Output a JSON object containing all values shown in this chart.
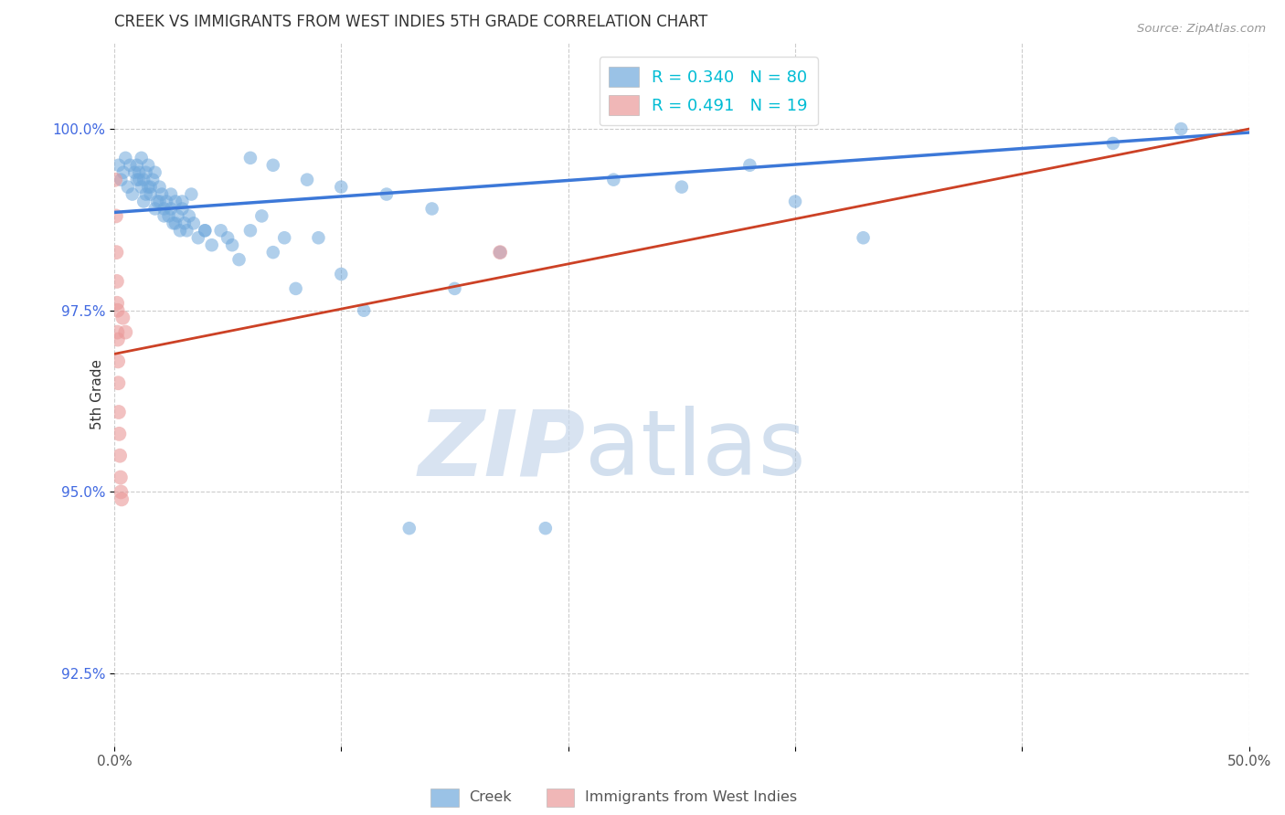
{
  "title": "CREEK VS IMMIGRANTS FROM WEST INDIES 5TH GRADE CORRELATION CHART",
  "source": "Source: ZipAtlas.com",
  "ylabel": "5th Grade",
  "yticks": [
    92.5,
    95.0,
    97.5,
    100.0
  ],
  "ytick_labels": [
    "92.5%",
    "95.0%",
    "97.5%",
    "100.0%"
  ],
  "xlim": [
    0.0,
    50.0
  ],
  "ylim": [
    91.5,
    101.2
  ],
  "creek_color": "#6fa8dc",
  "wIndies_color": "#ea9999",
  "trendline_creek_color": "#3c78d8",
  "trendline_wIndies_color": "#cc4125",
  "creek_R": 0.34,
  "creek_N": 80,
  "wIndies_R": 0.491,
  "wIndies_N": 19,
  "legend_label_creek": "Creek",
  "legend_label_wIndies": "Immigrants from West Indies",
  "watermark_zip": "ZIP",
  "watermark_atlas": "atlas",
  "background_color": "#ffffff",
  "creek_x": [
    0.2,
    0.3,
    0.4,
    0.5,
    0.6,
    0.7,
    0.8,
    0.9,
    1.0,
    1.0,
    1.1,
    1.2,
    1.2,
    1.3,
    1.3,
    1.4,
    1.5,
    1.5,
    1.6,
    1.7,
    1.8,
    1.9,
    2.0,
    2.1,
    2.2,
    2.3,
    2.4,
    2.5,
    2.6,
    2.7,
    2.8,
    2.9,
    3.0,
    3.1,
    3.2,
    3.3,
    3.5,
    3.7,
    4.0,
    4.3,
    4.7,
    5.0,
    5.5,
    6.0,
    6.5,
    7.0,
    7.5,
    8.0,
    9.0,
    10.0,
    11.0,
    13.0,
    15.0,
    17.0,
    19.0,
    22.0,
    25.0,
    28.0,
    30.0,
    33.0,
    1.1,
    1.4,
    1.6,
    1.8,
    2.0,
    2.2,
    2.5,
    2.7,
    3.0,
    3.4,
    4.0,
    5.2,
    6.0,
    7.0,
    8.5,
    10.0,
    12.0,
    14.0,
    44.0,
    47.0
  ],
  "creek_y": [
    99.5,
    99.3,
    99.4,
    99.6,
    99.2,
    99.5,
    99.1,
    99.4,
    99.5,
    99.3,
    99.4,
    99.2,
    99.6,
    99.3,
    99.0,
    99.4,
    99.2,
    99.5,
    99.1,
    99.3,
    99.4,
    99.0,
    99.2,
    99.1,
    98.9,
    99.0,
    98.8,
    99.1,
    98.7,
    99.0,
    98.8,
    98.6,
    98.9,
    98.7,
    98.6,
    98.8,
    98.7,
    98.5,
    98.6,
    98.4,
    98.6,
    98.5,
    98.2,
    98.6,
    98.8,
    98.3,
    98.5,
    97.8,
    98.5,
    98.0,
    97.5,
    94.5,
    97.8,
    98.3,
    94.5,
    99.3,
    99.2,
    99.5,
    99.0,
    98.5,
    99.3,
    99.1,
    99.2,
    98.9,
    99.0,
    98.8,
    98.9,
    98.7,
    99.0,
    99.1,
    98.6,
    98.4,
    99.6,
    99.5,
    99.3,
    99.2,
    99.1,
    98.9,
    99.8,
    100.0
  ],
  "wi_x": [
    0.05,
    0.08,
    0.1,
    0.12,
    0.13,
    0.14,
    0.15,
    0.16,
    0.17,
    0.18,
    0.2,
    0.22,
    0.25,
    0.28,
    0.3,
    0.33,
    0.38,
    0.5,
    17.0
  ],
  "wi_y": [
    99.3,
    98.8,
    98.3,
    97.9,
    97.6,
    97.2,
    97.5,
    97.1,
    96.8,
    96.5,
    96.1,
    95.8,
    95.5,
    95.2,
    95.0,
    94.9,
    97.4,
    97.2,
    98.3
  ],
  "creek_trendline_x": [
    0.0,
    50.0
  ],
  "creek_trendline_y": [
    98.85,
    99.95
  ],
  "wi_trendline_x": [
    0.0,
    50.0
  ],
  "wi_trendline_y": [
    96.9,
    100.0
  ]
}
